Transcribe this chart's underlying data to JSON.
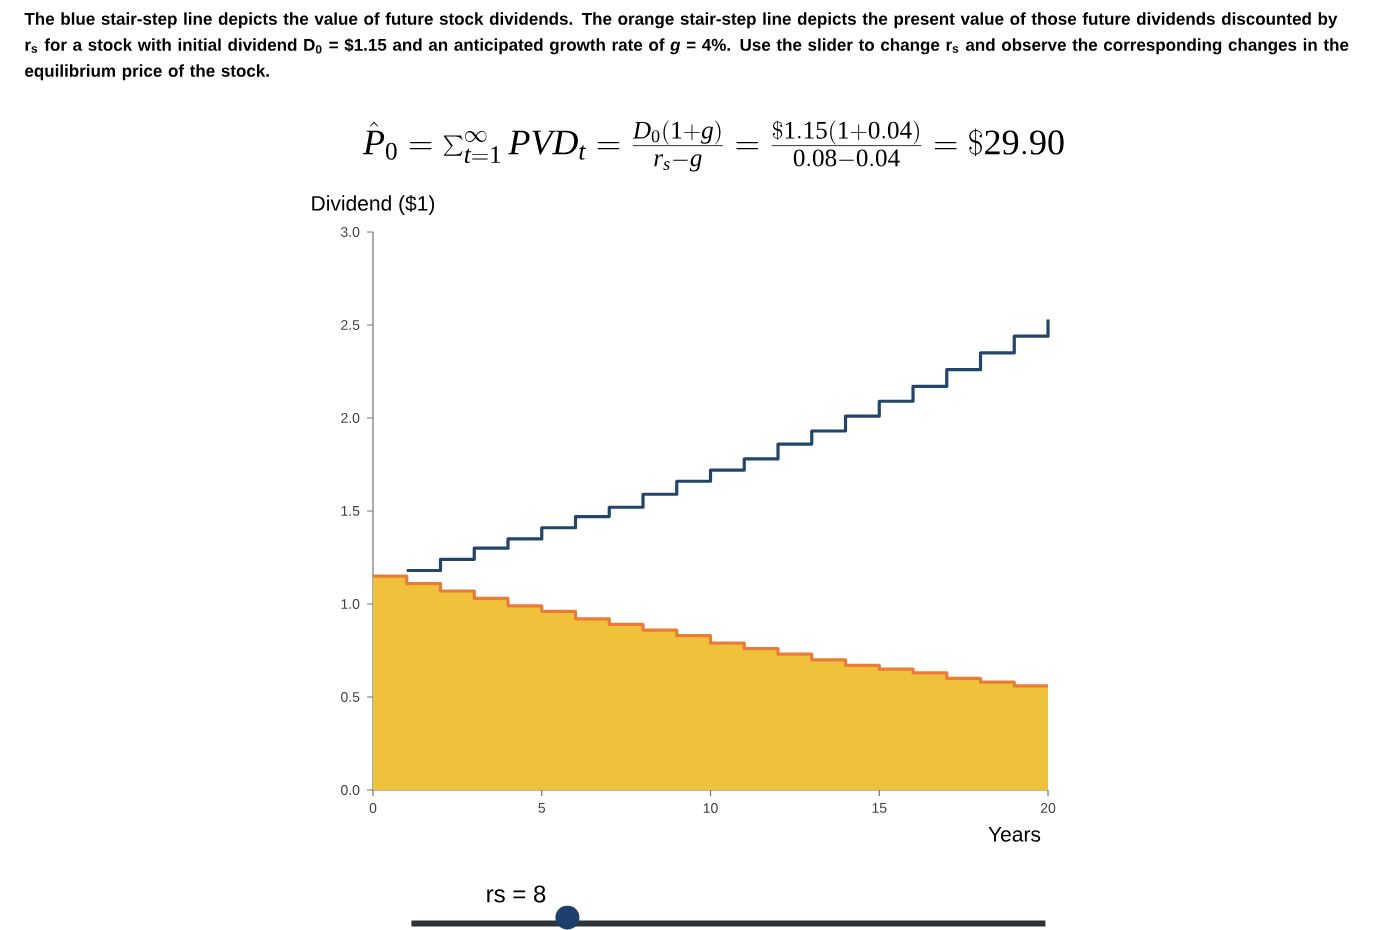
{
  "chart_data": {
    "type": "step",
    "title": "The blue stair-step line depicts the value of future stock dividends. The orange stair-step line depicts the present value of those future dividends discounted by r$_{s}$ for a stock with initial dividend D$_{0}$ = $1.15 and an anticipated growth rate of *g* = 4%. Use the slider to change r$_{s}$ and observe the corresponding changes in the equilibrium price of the stock.",
    "subtitle": "\\hat{P}_0 = \\sum_{t=1}^{\\infty} PVD_t = \\frac{D_0(1+g)}{r_s-g} = \\frac{\\$1.15(1+0.04)}{0.08-0.04} = \\$29.90",
    "xlabel": "Years",
    "ylabel": "Dividend ($1)",
    "annotations": [
      "rs = 8"
    ],
    "xlim": [
      0,
      20
    ],
    "ylim": [
      0,
      3
    ],
    "xticks": [
      0,
      5,
      10,
      15,
      20
    ],
    "yticks": [
      {
        "value": 0,
        "label": "0.0"
      },
      0.5,
      {
        "value": 1,
        "label": "1.0"
      },
      1.5,
      {
        "value": 2,
        "label": "2.0"
      },
      2.5,
      {
        "value": 3,
        "label": "3.0"
      }
    ],
    "series": [
      {
        "type": "area",
        "color": "#f0c23c",
        "x": [
          0,
          1,
          2,
          3,
          4,
          5,
          6,
          7,
          8,
          9,
          10,
          11,
          12,
          13,
          14,
          15,
          16,
          17,
          18,
          19,
          20
        ],
        "values": [
          1.15,
          1.11,
          1.07,
          1.03,
          0.99,
          0.96,
          0.92,
          0.89,
          0.86,
          0.83,
          0.79,
          0.76,
          0.73,
          0.7,
          0.67,
          0.65,
          0.63,
          0.6,
          0.58,
          0.56,
          0.56
        ]
      },
      {
        "color": "#24456a",
        "x": [
          1,
          2,
          3,
          4,
          5,
          6,
          7,
          8,
          9,
          10,
          11,
          12,
          13,
          14,
          15,
          16,
          17,
          18,
          19,
          20
        ],
        "values": [
          1.18,
          1.24,
          1.3,
          1.35,
          1.41,
          1.47,
          1.52,
          1.59,
          1.66,
          1.72,
          1.78,
          1.86,
          1.93,
          2.01,
          2.09,
          2.17,
          2.26,
          2.35,
          2.44,
          2.53
        ]
      },
      {
        "color": "#ea7c38",
        "x": [
          0,
          1,
          2,
          3,
          4,
          5,
          6,
          7,
          8,
          9,
          10,
          11,
          12,
          13,
          14,
          15,
          16,
          17,
          18,
          19,
          20
        ],
        "values": [
          1.15,
          1.11,
          1.07,
          1.03,
          0.99,
          0.96,
          0.92,
          0.89,
          0.86,
          0.83,
          0.79,
          0.76,
          0.73,
          0.7,
          0.67,
          0.65,
          0.63,
          0.6,
          0.58,
          0.56,
          0.56
        ]
      }
    ]
  }
}
